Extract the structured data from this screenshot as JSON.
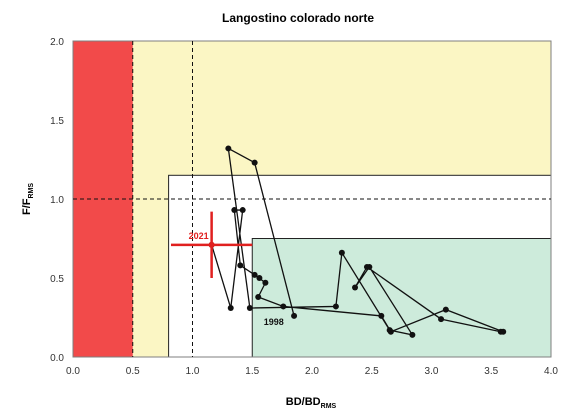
{
  "chart_data": {
    "type": "scatter",
    "title": "Langostino colorado norte",
    "xlabel": {
      "main": "BD/BD",
      "sub": "RMS"
    },
    "ylabel": {
      "main": "F/F",
      "sub": "RMS"
    },
    "xlim": [
      0.0,
      4.0
    ],
    "ylim": [
      0.0,
      2.0
    ],
    "xticks": [
      "0.0",
      "0.5",
      "1.0",
      "1.5",
      "2.0",
      "2.5",
      "3.0",
      "3.5",
      "4.0"
    ],
    "yticks": [
      "0.0",
      "0.5",
      "1.0",
      "1.5",
      "2.0"
    ],
    "zones": {
      "collapsed": {
        "x": [
          0.0,
          0.5
        ],
        "y": [
          0.0,
          2.0
        ],
        "color": "#f24a4a"
      },
      "overfished": {
        "x": [
          0.5,
          4.0
        ],
        "y": [
          0.0,
          2.0
        ],
        "color": "#fbf6c4"
      },
      "full_exploitation": {
        "x": [
          0.8,
          4.0
        ],
        "y": [
          0.0,
          1.15
        ],
        "color": "#ffffff"
      },
      "underexploited": {
        "x": [
          1.5,
          4.0
        ],
        "y": [
          0.0,
          0.75
        ],
        "color": "#cdebdb"
      }
    },
    "reference_lines": {
      "x": [
        0.5,
        1.0
      ],
      "y": [
        1.0
      ]
    },
    "series": [
      {
        "x": [
          1.85,
          1.52,
          1.3,
          1.48,
          2.2,
          2.25,
          2.65,
          2.84,
          2.48,
          2.36,
          2.46,
          3.08,
          3.58,
          3.6,
          3.12,
          2.66,
          2.58,
          1.76,
          1.55,
          1.61,
          1.52,
          1.56,
          1.4,
          1.35,
          1.42,
          1.32,
          1.16
        ],
        "y": [
          0.26,
          1.23,
          1.32,
          0.31,
          0.32,
          0.66,
          0.17,
          0.14,
          0.57,
          0.44,
          0.57,
          0.24,
          0.16,
          0.16,
          0.3,
          0.16,
          0.26,
          0.32,
          0.38,
          0.47,
          0.52,
          0.5,
          0.58,
          0.93,
          0.93,
          0.31,
          0.71
        ]
      }
    ],
    "highlight": {
      "label": "2021",
      "x": 1.16,
      "y": 0.71,
      "x_interval": [
        0.82,
        1.5
      ],
      "y_interval": [
        0.5,
        0.92
      ],
      "color": "#e0201f"
    },
    "annotations": [
      {
        "text": "1998",
        "x": 1.68,
        "y": 0.22
      }
    ]
  }
}
